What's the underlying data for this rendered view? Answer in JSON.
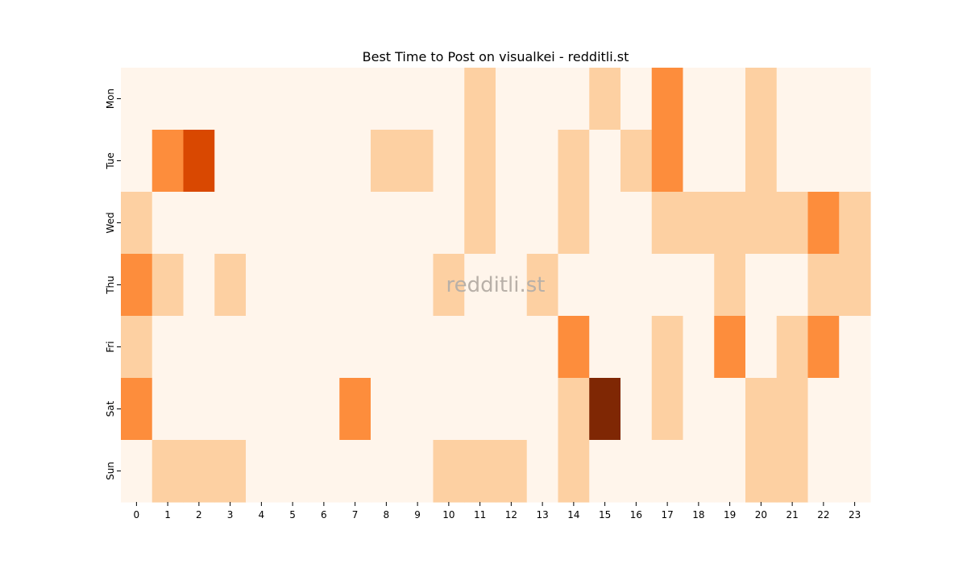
{
  "chart_data": {
    "type": "heatmap",
    "title": "Best Time to Post on visualkei - redditli.st",
    "xlabel": "",
    "ylabel": "",
    "x_categories": [
      "0",
      "1",
      "2",
      "3",
      "4",
      "5",
      "6",
      "7",
      "8",
      "9",
      "10",
      "11",
      "12",
      "13",
      "14",
      "15",
      "16",
      "17",
      "18",
      "19",
      "20",
      "21",
      "22",
      "23"
    ],
    "y_categories": [
      "Mon",
      "Tue",
      "Wed",
      "Thu",
      "Fri",
      "Sat",
      "Sun"
    ],
    "values": [
      [
        0,
        0,
        0,
        0,
        0,
        0,
        0,
        0,
        0,
        0,
        0,
        1,
        0,
        0,
        0,
        1,
        0,
        3,
        0,
        0,
        1,
        0,
        0,
        0
      ],
      [
        0,
        3,
        4,
        0,
        0,
        0,
        0,
        0,
        1,
        1,
        0,
        1,
        0,
        0,
        1,
        0,
        1,
        3,
        0,
        0,
        1,
        0,
        0,
        0
      ],
      [
        1,
        0,
        0,
        0,
        0,
        0,
        0,
        0,
        0,
        0,
        0,
        1,
        0,
        0,
        1,
        0,
        0,
        1,
        1,
        1,
        1,
        1,
        3,
        1
      ],
      [
        3,
        1,
        0,
        1,
        0,
        0,
        0,
        0,
        0,
        0,
        1,
        0,
        0,
        1,
        0,
        0,
        0,
        0,
        0,
        1,
        0,
        0,
        1,
        1
      ],
      [
        1,
        0,
        0,
        0,
        0,
        0,
        0,
        0,
        0,
        0,
        0,
        0,
        0,
        0,
        3,
        0,
        0,
        1,
        0,
        3,
        0,
        1,
        3,
        0
      ],
      [
        3,
        0,
        0,
        0,
        0,
        0,
        0,
        3,
        0,
        0,
        0,
        0,
        0,
        0,
        1,
        5,
        0,
        1,
        0,
        0,
        1,
        1,
        0,
        0
      ],
      [
        0,
        1,
        1,
        1,
        0,
        0,
        0,
        0,
        0,
        0,
        1,
        1,
        1,
        0,
        1,
        0,
        0,
        0,
        0,
        0,
        1,
        1,
        0,
        0
      ]
    ],
    "value_range": [
      0,
      5
    ],
    "colormap": "Oranges",
    "level_colors": [
      "#fff5eb",
      "#fdd0a2",
      "#fdae6b",
      "#fd8d3c",
      "#d94801",
      "#7f2704"
    ],
    "grid": false,
    "legend": "none",
    "watermark": "redditli.st"
  }
}
